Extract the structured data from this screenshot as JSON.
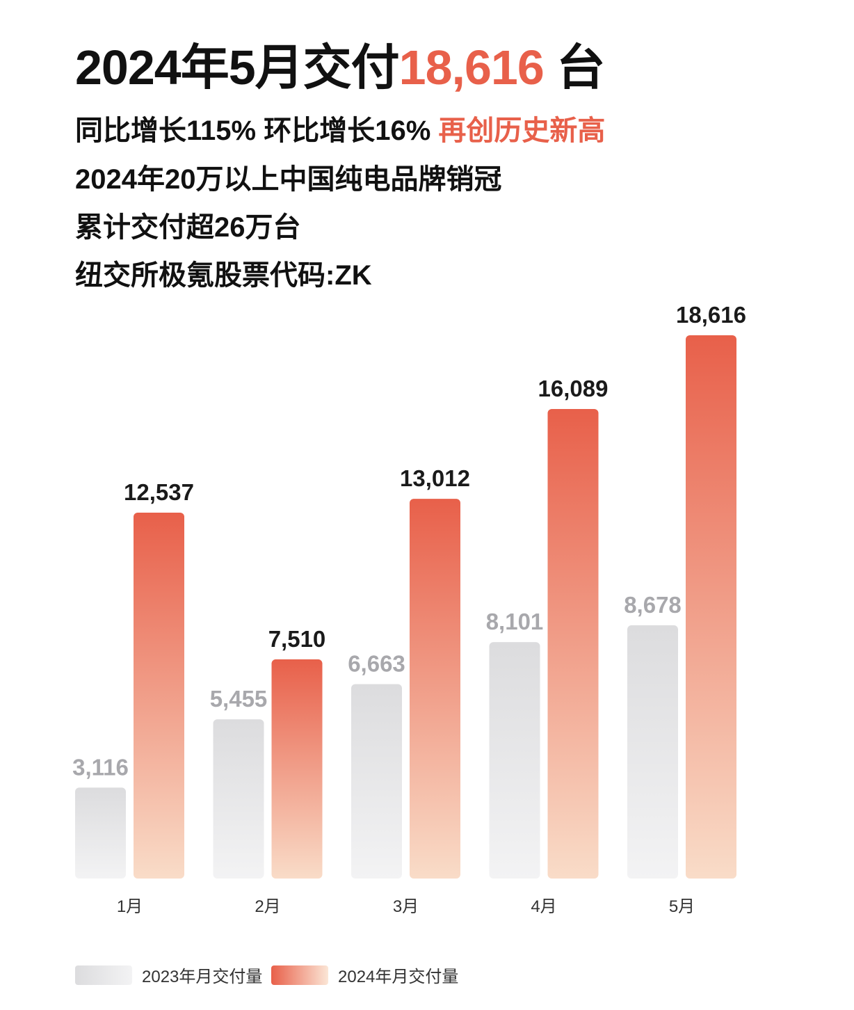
{
  "header": {
    "title_prefix": "2024年5月交付",
    "title_value": "18,616",
    "title_suffix": " 台",
    "line1_main": "同比增长115% 环比增长16% ",
    "line1_accent": "再创历史新高",
    "line2": "2024年20万以上中国纯电品牌销冠",
    "line3": "累计交付超26万台",
    "line4": "纽交所极氪股票代码:ZK"
  },
  "colors": {
    "accent": "#e8604a",
    "bar2023": "#dcdcde",
    "bar2024_top": "#e8604a",
    "bar2024_bottom": "#f9dcc8",
    "label2023": "#a8a8ac"
  },
  "chart_data": {
    "type": "bar",
    "title": "",
    "xlabel": "",
    "ylabel": "",
    "categories": [
      "1月",
      "2月",
      "3月",
      "4月",
      "5月"
    ],
    "series": [
      {
        "name": "2023年月交付量",
        "values": [
          3116,
          5455,
          6663,
          8101,
          8678
        ],
        "labels": [
          "3,116",
          "5,455",
          "6,663",
          "8,101",
          "8,678"
        ]
      },
      {
        "name": "2024年月交付量",
        "values": [
          12537,
          7510,
          13012,
          16089,
          18616
        ],
        "labels": [
          "12,537",
          "7,510",
          "13,012",
          "16,089",
          "18,616"
        ]
      }
    ],
    "ylim": [
      0,
      18616
    ],
    "grid": false,
    "legend": "bottom-left"
  }
}
